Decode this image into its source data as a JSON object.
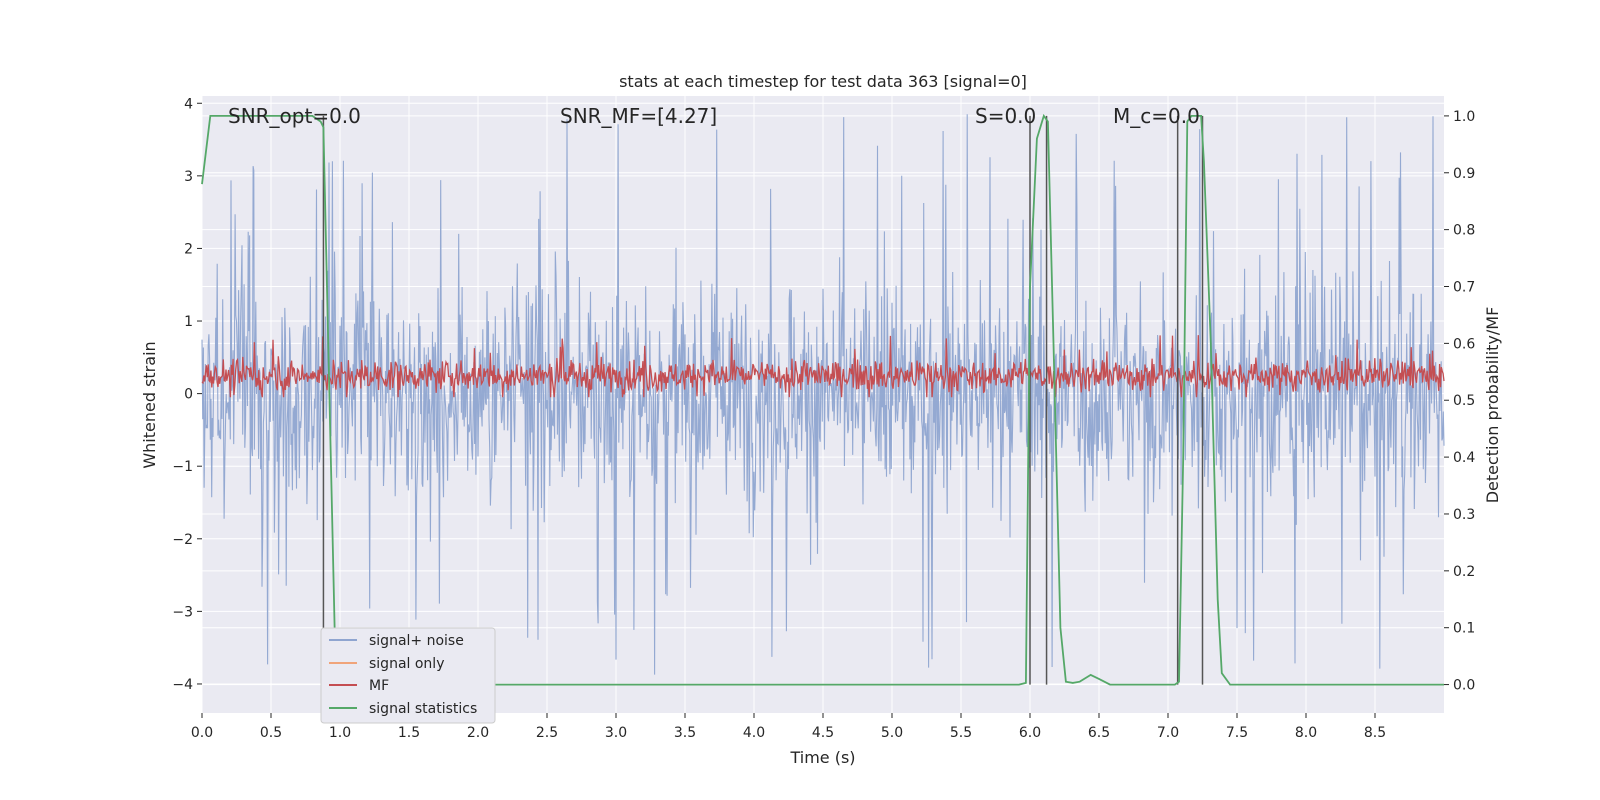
{
  "chart_data": {
    "type": "line",
    "title": "stats at each timestep for test data 363 [signal=0]",
    "xlabel": "Time (s)",
    "ylabel": "Whitened strain",
    "ylabel_right": "Detection probability/MF",
    "xlim": [
      0.0,
      9.0
    ],
    "ylim": [
      -4.4,
      4.1
    ],
    "ylim_right": [
      -0.05,
      1.035
    ],
    "xticks": [
      "0.0",
      "0.5",
      "1.0",
      "1.5",
      "2.0",
      "2.5",
      "3.0",
      "3.5",
      "4.0",
      "4.5",
      "5.0",
      "5.5",
      "6.0",
      "6.5",
      "7.0",
      "7.5",
      "8.0",
      "8.5"
    ],
    "yticks": [
      "4",
      "3",
      "2",
      "1",
      "0",
      "−1",
      "−2",
      "−3",
      "−4"
    ],
    "yticks_right": [
      "1.0",
      "0.9",
      "0.8",
      "0.7",
      "0.6",
      "0.5",
      "0.4",
      "0.3",
      "0.2",
      "0.1",
      "0.0"
    ],
    "grid": true,
    "legend_position": "lower-left",
    "annotations": [
      {
        "text": "SNR_opt=0.0",
        "x": 0.2,
        "y": 3.85
      },
      {
        "text": "SNR_MF=[4.27]",
        "x": 2.6,
        "y": 3.85
      },
      {
        "text": "S=0.0",
        "x": 5.6,
        "y": 3.85
      },
      {
        "text": "M_c=0.0",
        "x": 6.6,
        "y": 3.85
      }
    ],
    "series": [
      {
        "name": "signal+ noise",
        "color": "#8fa5d0",
        "kind": "noise",
        "amplitude_typical": 1.4,
        "amplitude_peak": 3.9
      },
      {
        "name": "signal only",
        "color": "#f0a47a",
        "kind": "flat",
        "values": []
      },
      {
        "name": "MF",
        "color": "#c44e52",
        "kind": "noise",
        "center": 0.25,
        "amplitude_typical": 0.35,
        "amplitude_peak": 0.85
      },
      {
        "name": "signal statistics",
        "color": "#55a868",
        "axis": "right",
        "points": [
          [
            0.0,
            0.88
          ],
          [
            0.06,
            1.0
          ],
          [
            0.8,
            1.0
          ],
          [
            0.86,
            0.99
          ],
          [
            0.88,
            0.98
          ],
          [
            0.97,
            0.0
          ],
          [
            5.92,
            0.0
          ],
          [
            5.97,
            0.003
          ],
          [
            6.0,
            0.7
          ],
          [
            6.05,
            0.96
          ],
          [
            6.1,
            1.0
          ],
          [
            6.13,
            0.99
          ],
          [
            6.17,
            0.6
          ],
          [
            6.22,
            0.1
          ],
          [
            6.26,
            0.005
          ],
          [
            6.31,
            0.003
          ],
          [
            6.36,
            0.005
          ],
          [
            6.44,
            0.017
          ],
          [
            6.5,
            0.01
          ],
          [
            6.58,
            0.0
          ],
          [
            7.05,
            0.0
          ],
          [
            7.08,
            0.005
          ],
          [
            7.11,
            0.4
          ],
          [
            7.14,
            0.99
          ],
          [
            7.17,
            1.0
          ],
          [
            7.24,
            1.0
          ],
          [
            7.26,
            0.92
          ],
          [
            7.31,
            0.6
          ],
          [
            7.36,
            0.15
          ],
          [
            7.39,
            0.02
          ],
          [
            7.45,
            0.0
          ],
          [
            9.0,
            0.0
          ]
        ]
      }
    ],
    "vlines": [
      {
        "x": 0.88,
        "color": "#555555"
      },
      {
        "x": 6.0,
        "color": "#555555"
      },
      {
        "x": 6.12,
        "color": "#555555"
      },
      {
        "x": 7.07,
        "color": "#555555"
      },
      {
        "x": 7.25,
        "color": "#555555"
      }
    ],
    "legend": [
      "signal+ noise",
      "signal only",
      "MF",
      "signal statistics"
    ]
  }
}
